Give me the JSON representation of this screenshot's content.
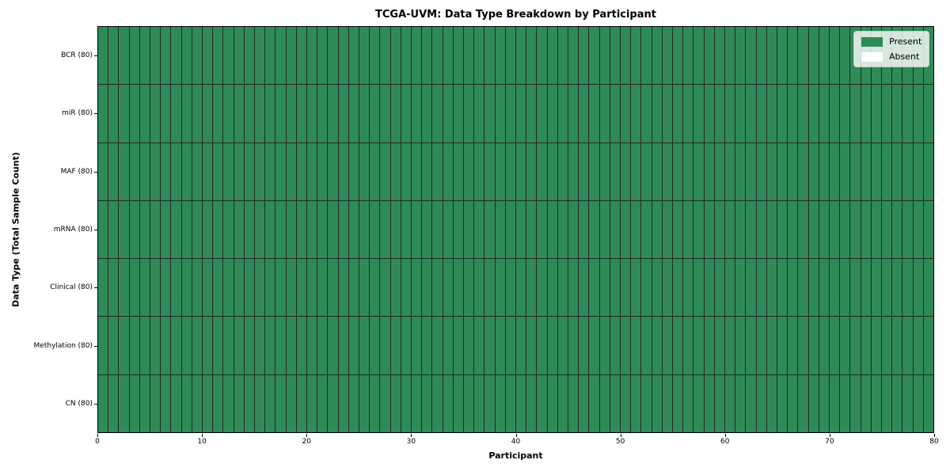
{
  "figure": {
    "title": "TCGA-UVM: Data Type Breakdown by Participant",
    "x_axis_label": "Participant",
    "y_axis_label": "Data Type (Total Sample Count)"
  },
  "legend": {
    "entries": [
      {
        "label": "Present",
        "color": "#2e8b57"
      },
      {
        "label": "Absent",
        "color": "#ffffff"
      }
    ],
    "position": "upper right"
  },
  "chart_data": {
    "type": "heatmap",
    "title": "TCGA-UVM: Data Type Breakdown by Participant",
    "xlabel": "Participant",
    "ylabel": "Data Type (Total Sample Count)",
    "x_range": [
      0,
      80
    ],
    "x_ticks": [
      0,
      10,
      20,
      30,
      40,
      50,
      60,
      70,
      80
    ],
    "n_participants": 80,
    "categories": [
      "BCR (80)",
      "miR (80)",
      "MAF (80)",
      "mRNA (80)",
      "Clinical (80)",
      "Methylation (80)",
      "CN (80)"
    ],
    "rows": [
      {
        "label": "BCR (80)",
        "data_type": "BCR",
        "total_sample_count": 80,
        "present": 80,
        "absent": 0
      },
      {
        "label": "miR (80)",
        "data_type": "miR",
        "total_sample_count": 80,
        "present": 80,
        "absent": 0
      },
      {
        "label": "MAF (80)",
        "data_type": "MAF",
        "total_sample_count": 80,
        "present": 80,
        "absent": 0
      },
      {
        "label": "mRNA (80)",
        "data_type": "mRNA",
        "total_sample_count": 80,
        "present": 80,
        "absent": 0
      },
      {
        "label": "Clinical (80)",
        "data_type": "Clinical",
        "total_sample_count": 80,
        "present": 80,
        "absent": 0
      },
      {
        "label": "Methylation (80)",
        "data_type": "Methylation",
        "total_sample_count": 80,
        "present": 80,
        "absent": 0
      },
      {
        "label": "CN (80)",
        "data_type": "CN",
        "total_sample_count": 80,
        "present": 80,
        "absent": 0
      }
    ],
    "colors": {
      "present": "#2e8b57",
      "absent": "#ffffff",
      "cell_border": "#262626",
      "axis": "#000000"
    },
    "legend_position": "upper right",
    "grid": false
  }
}
